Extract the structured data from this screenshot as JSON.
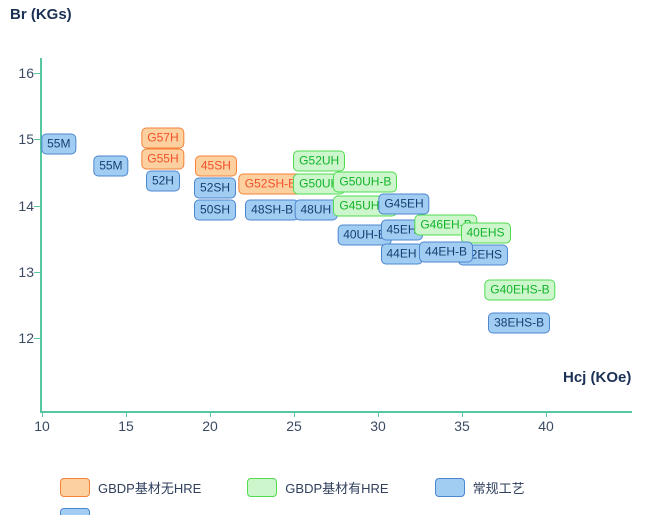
{
  "colors": {
    "background": "#ffffff",
    "axis": "#57c7a0",
    "tick_text": "#3b4a63",
    "title_text": "#1b3055"
  },
  "chart_data": {
    "type": "scatter",
    "title": "",
    "x_axis": {
      "label": "Hcj (KOe)",
      "range": [
        10,
        40
      ],
      "ticks": [
        10,
        15,
        20,
        25,
        30,
        35,
        40
      ]
    },
    "y_axis": {
      "label": "Br (KGs)",
      "range": [
        12,
        16
      ],
      "ticks": [
        16,
        15,
        14,
        13,
        12
      ]
    },
    "grid": false,
    "legend_position": "bottom",
    "series": {
      "gbdp_no_hre": {
        "name": "GBDP基材无HRE",
        "fill": "#fdd0a0",
        "border": "#f58238",
        "text": "#f1512a"
      },
      "gbdp_hre": {
        "name": "GBDP基材有HRE",
        "fill": "#cdf6cc",
        "border": "#4fdc4f",
        "text": "#12b42a"
      },
      "conventional": {
        "name": "常规工艺",
        "fill": "#a2cdf2",
        "border": "#4c86cf",
        "text": "#153f72"
      }
    },
    "legend_order": [
      "gbdp_no_hre",
      "gbdp_hre",
      "conventional"
    ],
    "points": [
      {
        "label": "55M",
        "x": 11.0,
        "y": 14.93,
        "series": "conventional"
      },
      {
        "label": "55M",
        "x": 14.1,
        "y": 14.6,
        "series": "conventional"
      },
      {
        "label": "G57H",
        "x": 17.2,
        "y": 15.02,
        "series": "gbdp_no_hre"
      },
      {
        "label": "G55H",
        "x": 17.2,
        "y": 14.7,
        "series": "gbdp_no_hre"
      },
      {
        "label": "52H",
        "x": 17.2,
        "y": 14.37,
        "series": "conventional"
      },
      {
        "label": "45SH",
        "x": 20.35,
        "y": 14.6,
        "series": "gbdp_no_hre"
      },
      {
        "label": "52SH",
        "x": 20.3,
        "y": 14.27,
        "series": "conventional"
      },
      {
        "label": "50SH",
        "x": 20.3,
        "y": 13.93,
        "series": "conventional"
      },
      {
        "label": "G52SH-B",
        "x": 23.6,
        "y": 14.33,
        "series": "gbdp_no_hre"
      },
      {
        "label": "48SH-B",
        "x": 23.7,
        "y": 13.93,
        "series": "conventional"
      },
      {
        "label": "G52UH",
        "x": 26.5,
        "y": 14.67,
        "series": "gbdp_hre"
      },
      {
        "label": "G50UH",
        "x": 26.5,
        "y": 14.33,
        "series": "gbdp_hre"
      },
      {
        "label": "48UH",
        "x": 26.3,
        "y": 13.93,
        "series": "conventional"
      },
      {
        "label": "G50UH-B",
        "x": 29.25,
        "y": 14.35,
        "series": "gbdp_hre"
      },
      {
        "label": "G45UH-B",
        "x": 29.25,
        "y": 14.0,
        "series": "gbdp_hre"
      },
      {
        "label": "40UH-B",
        "x": 29.2,
        "y": 13.55,
        "series": "conventional"
      },
      {
        "label": "G45EH",
        "x": 31.55,
        "y": 14.02,
        "series": "conventional"
      },
      {
        "label": "45EH",
        "x": 31.4,
        "y": 13.63,
        "series": "conventional"
      },
      {
        "label": "44EH",
        "x": 31.4,
        "y": 13.27,
        "series": "conventional"
      },
      {
        "label": "G46EH-B",
        "x": 34.05,
        "y": 13.7,
        "series": "gbdp_hre"
      },
      {
        "label": "40EHS",
        "x": 36.4,
        "y": 13.58,
        "series": "gbdp_hre"
      },
      {
        "label": "42EHS",
        "x": 36.25,
        "y": 13.25,
        "series": "conventional"
      },
      {
        "label": "44EH-B",
        "x": 34.05,
        "y": 13.3,
        "series": "conventional"
      },
      {
        "label": "G40EHS-B",
        "x": 38.45,
        "y": 12.72,
        "series": "gbdp_hre"
      },
      {
        "label": "38EHS-B",
        "x": 38.4,
        "y": 12.22,
        "series": "conventional"
      }
    ]
  }
}
